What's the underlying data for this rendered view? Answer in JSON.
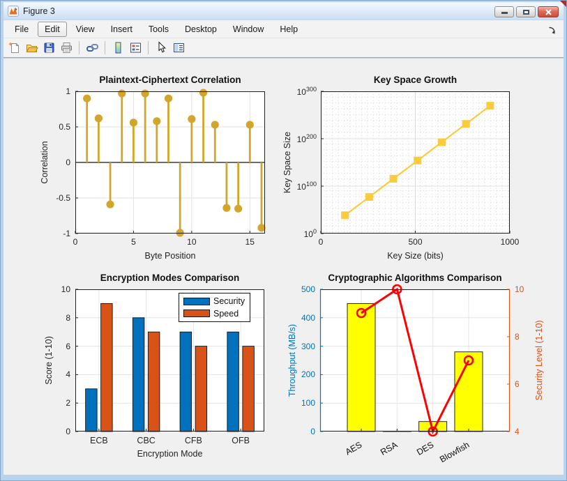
{
  "window": {
    "title": "Figure 3",
    "controls": [
      "minimize",
      "maximize",
      "close"
    ],
    "menu": {
      "items": [
        "File",
        "Edit",
        "View",
        "Insert",
        "Tools",
        "Desktop",
        "Window",
        "Help"
      ],
      "active": "Edit"
    },
    "toolbar_icons": [
      "new-figure",
      "open-file",
      "save-figure",
      "print-figure",
      "link-plot",
      "insert-colorbar",
      "insert-legend",
      "edit-plot",
      "property-editor"
    ]
  },
  "palette": {
    "matlab_blue": "#0072BD",
    "matlab_orange": "#D95319",
    "stem_gold": "#D2A62B",
    "keyspace_yellow": "#FBCB3E",
    "bar_yellow": "#FFFF00",
    "line_red": "#FF0000",
    "grid_gray": "#E2E2E2"
  },
  "chart_data": [
    {
      "name": "plaintext-ciphertext-correlation",
      "type": "stem",
      "title": "Plaintext-Ciphertext Correlation",
      "xlabel": "Byte Position",
      "ylabel": "Correlation",
      "xlim": [
        0,
        16.3
      ],
      "ylim": [
        -1,
        1
      ],
      "xticks": [
        0,
        5,
        10,
        15
      ],
      "yticks": [
        -1,
        -0.5,
        0,
        0.5,
        1
      ],
      "x": [
        1,
        2,
        3,
        4,
        5,
        6,
        7,
        8,
        9,
        10,
        11,
        12,
        13,
        14,
        15,
        16
      ],
      "y": [
        0.9,
        0.62,
        -0.59,
        0.97,
        0.56,
        0.97,
        0.58,
        0.9,
        -0.99,
        0.61,
        0.98,
        0.53,
        -0.64,
        -0.65,
        0.53,
        -0.92
      ],
      "color": "#D2A62B",
      "grid": true
    },
    {
      "name": "key-space-growth",
      "type": "line",
      "yscale": "log",
      "title": "Key Space Growth",
      "xlabel": "Key Size (bits)",
      "ylabel": "Key Space Size",
      "x": [
        128,
        256,
        384,
        512,
        640,
        768,
        896
      ],
      "y_log10": [
        38.5,
        77.1,
        115.6,
        154.1,
        192.7,
        231.2,
        269.7
      ],
      "note": "key space size = 2^key_size",
      "xlim": [
        0,
        1000
      ],
      "ylim_log10": [
        0,
        300
      ],
      "xticks": [
        0,
        500,
        1000
      ],
      "ytick_exponents": [
        0,
        100,
        200,
        300
      ],
      "marker": "square",
      "color": "#FBCB3E",
      "grid": "major plus dotted minor"
    },
    {
      "name": "encryption-modes-comparison",
      "type": "bar",
      "title": "Encryption Modes Comparison",
      "xlabel": "Encryption Mode",
      "ylabel": "Score (1-10)",
      "categories": [
        "ECB",
        "CBC",
        "CFB",
        "OFB"
      ],
      "series": [
        {
          "name": "Security",
          "color": "#0072BD",
          "values": [
            3,
            8,
            7,
            7
          ]
        },
        {
          "name": "Speed",
          "color": "#D95319",
          "values": [
            9,
            7,
            6,
            6
          ]
        }
      ],
      "ylim": [
        0,
        10
      ],
      "yticks": [
        0,
        2,
        4,
        6,
        8,
        10
      ],
      "legend_position": "top-right",
      "grid": true
    },
    {
      "name": "cryptographic-algorithms-comparison",
      "type": "combo-bar-line-dual-axis",
      "title": "Cryptographic Algorithms Comparison",
      "categories": [
        "AES",
        "RSA",
        "DES",
        "Blowfish"
      ],
      "bar_series": {
        "name": "Throughput",
        "axis": "left",
        "color": "#FFFF00",
        "values": [
          450,
          0.5,
          35,
          280
        ]
      },
      "line_series": {
        "name": "Security Level",
        "axis": "right",
        "color": "#FF0000",
        "marker": "open-circle",
        "values": [
          9,
          10,
          4,
          7
        ]
      },
      "ylabel_left": "Throughput (MB/s)",
      "ylabel_right": "Security Level (1-10)",
      "ylim_left": [
        0,
        500
      ],
      "yticks_left": [
        0,
        100,
        200,
        300,
        400,
        500
      ],
      "ylim_right": [
        4,
        10
      ],
      "yticks_right": [
        4,
        6,
        8,
        10
      ],
      "axis_colors": {
        "left": "#0072BD",
        "right": "#D95319"
      },
      "xlim_units": [
        -0.15,
        5.15
      ],
      "x_positions": [
        1,
        2,
        3,
        4
      ],
      "xtick_rotation_deg": -30,
      "grid": true
    }
  ]
}
